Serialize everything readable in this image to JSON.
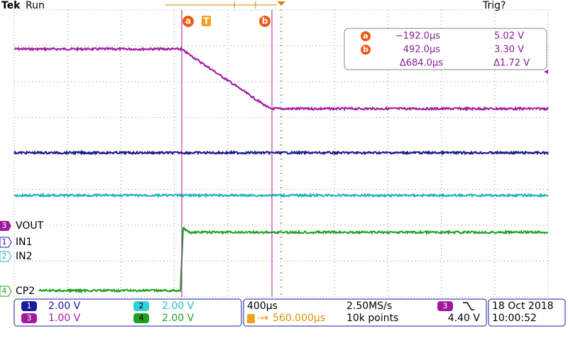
{
  "header": {
    "brand": "Tek",
    "status": "Run",
    "trigger_status": "Trig?"
  },
  "markers": {
    "a": "a",
    "b": "b",
    "trigger": "T"
  },
  "cursor_readout": {
    "a": {
      "time": "−192.0µs",
      "voltage": "5.02 V"
    },
    "b": {
      "time": "492.0µs",
      "voltage": "3.30 V"
    },
    "delta": {
      "time": "Δ684.0µs",
      "voltage": "Δ1.72 V"
    }
  },
  "channels": [
    {
      "number": "3",
      "name": "VOUT"
    },
    {
      "number": "1",
      "name": "IN1"
    },
    {
      "number": "2",
      "name": "IN2"
    },
    {
      "number": "4",
      "name": "CP2"
    }
  ],
  "status_bar": {
    "channel_scales": [
      {
        "number": "1",
        "scale": "2.00 V"
      },
      {
        "number": "2",
        "scale": "2.00 V"
      },
      {
        "number": "3",
        "scale": "1.00 V"
      },
      {
        "number": "4",
        "scale": "2.00 V"
      }
    ],
    "timebase": "400µs",
    "sample_rate": "2.50MS/s",
    "trigger_position": "560.000µs",
    "record_length": "10k points",
    "trigger_source": "3",
    "trigger_level": "4.40 V",
    "date": "18 Oct 2018",
    "time": "10:00:52"
  }
}
